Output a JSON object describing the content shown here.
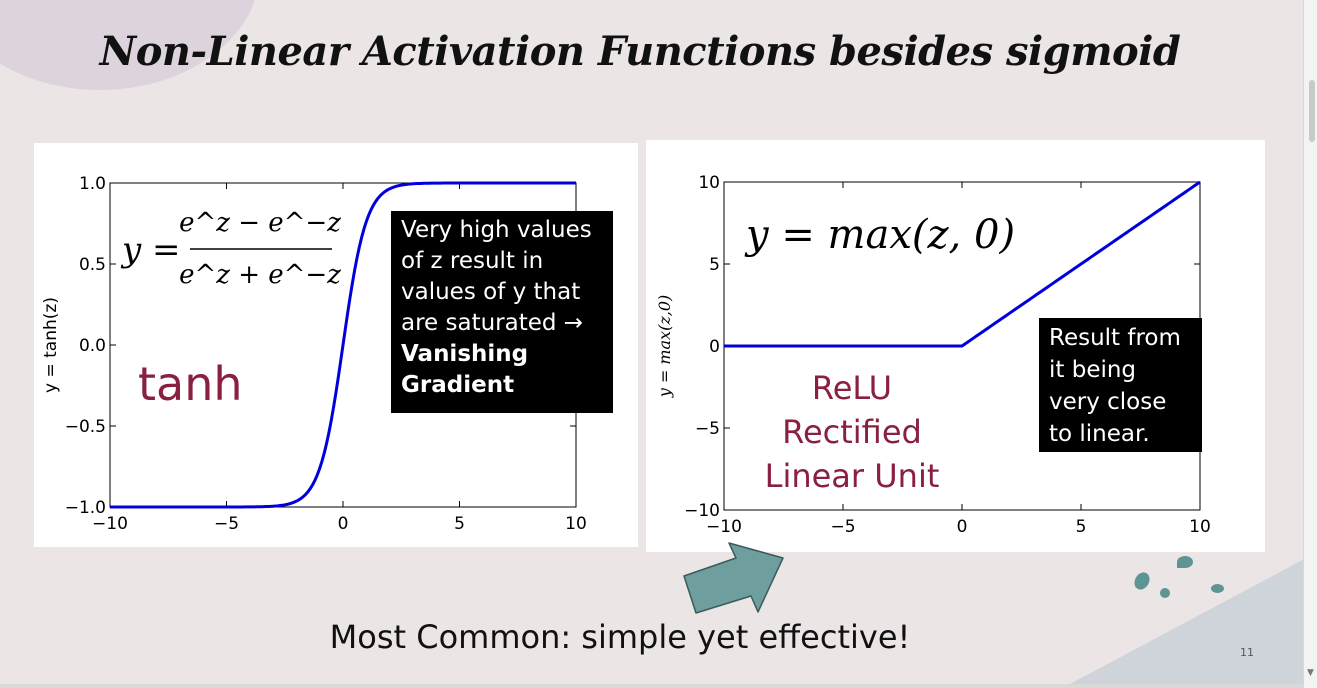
{
  "slide": {
    "title": "Non-Linear Activation Functions besides sigmoid",
    "bottom_text": "Most Common: simple yet effective!",
    "page_number": "11"
  },
  "tanh_panel": {
    "ylabel": "y = tanh(z)",
    "x_ticks": [
      "−10",
      "−5",
      "0",
      "5",
      "10"
    ],
    "y_ticks": [
      "1.0",
      "0.5",
      "0.0",
      "−0.5",
      "−1.0"
    ],
    "formula_lhs": "y =",
    "formula_num": "e^z − e^−z",
    "formula_den": "e^z + e^−z",
    "name": "tanh",
    "callout_text": "Very high values of z result in values of y that are saturated →",
    "callout_bold": "Vanishing Gradient"
  },
  "relu_panel": {
    "ylabel": "y = max(z,0)",
    "x_ticks": [
      "−10",
      "−5",
      "0",
      "5",
      "10"
    ],
    "y_ticks": [
      "10",
      "5",
      "0",
      "−5",
      "−10"
    ],
    "formula": "y = max(z, 0)",
    "name_line1": "ReLU",
    "name_line2": "Rectified",
    "name_line3": "Linear Unit",
    "callout_text": "Result from it being very close to linear."
  },
  "chart_data": [
    {
      "type": "line",
      "series": [
        {
          "name": "",
          "function": "tanh(z)",
          "x": [
            -10,
            -5,
            -3,
            -2,
            -1,
            0,
            1,
            2,
            3,
            5,
            10
          ],
          "values": [
            -1.0,
            -1.0,
            -0.995,
            -0.964,
            -0.762,
            0.0,
            0.762,
            0.964,
            0.995,
            1.0,
            1.0
          ]
        }
      ],
      "xlim": [
        -10,
        10
      ],
      "ylim": [
        -1.0,
        1.0
      ],
      "ylabel": "y = tanh(z)",
      "grid": false,
      "color": "#0000dd"
    },
    {
      "type": "line",
      "series": [
        {
          "name": "",
          "function": "max(z,0)",
          "x": [
            -10,
            0,
            10
          ],
          "values": [
            0,
            0,
            10
          ]
        }
      ],
      "xlim": [
        -10,
        10
      ],
      "ylim": [
        -10,
        10
      ],
      "ylabel": "y = max(z,0)",
      "grid": false,
      "color": "#0000dd"
    }
  ],
  "colors": {
    "line": "#0000dd",
    "accent_text": "#8a2040",
    "arrow": "#6e9e9e"
  }
}
